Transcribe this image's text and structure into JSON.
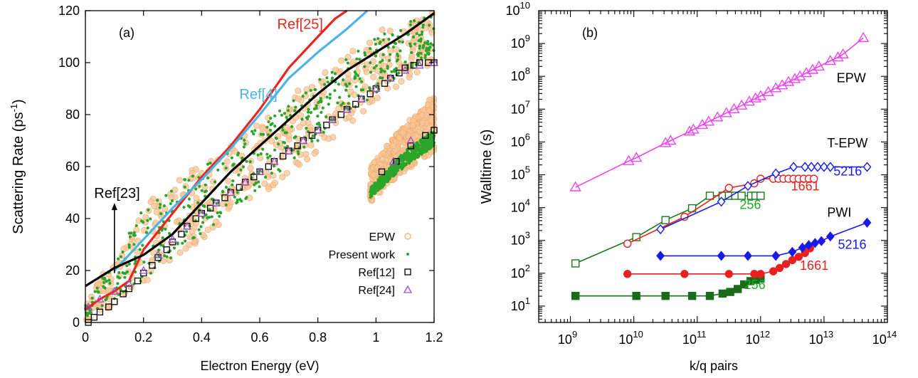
{
  "chart_data": [
    {
      "type": "scatter",
      "panel_label": "(a)",
      "xlabel": "Electron Energy (eV)",
      "ylabel": "Scattering Rate (ps",
      "ylabel_sup": "-1",
      "ylabel_close": ")",
      "xlim": [
        0,
        1.2
      ],
      "ylim": [
        0,
        120
      ],
      "xticks": [
        0,
        0.2,
        0.4,
        0.6,
        0.8,
        1,
        1.2
      ],
      "xtick_labels": [
        "0",
        "0.2",
        "0.4",
        "0.6",
        "0.8",
        "1",
        "1.2"
      ],
      "yticks": [
        0,
        20,
        40,
        60,
        80,
        100,
        120
      ],
      "ytick_labels": [
        "0",
        "20",
        "40",
        "60",
        "80",
        "100",
        "120"
      ],
      "legend": [
        {
          "label": "EPW",
          "marker": "circle",
          "color": "#f5b47a"
        },
        {
          "label": "Present work",
          "marker": "dot",
          "color": "#22a822"
        },
        {
          "label": "Ref[12]",
          "marker": "square",
          "color": "#000000"
        },
        {
          "label": "Ref[24]",
          "marker": "triangle",
          "color": "#9b4fc9"
        }
      ],
      "bands": [
        {
          "name": "EPW",
          "color": "#f5c59a",
          "x": [
            0,
            0.2,
            0.4,
            0.6,
            0.8,
            1.0,
            1.2
          ],
          "lower": [
            0,
            14,
            30,
            48,
            66,
            85,
            100
          ],
          "upper": [
            8,
            45,
            62,
            78,
            95,
            112,
            120
          ]
        },
        {
          "name": "Present work",
          "color": "#2aa52a",
          "x": [
            0,
            0.2,
            0.4,
            0.6,
            0.8,
            1.0,
            1.2
          ],
          "lower": [
            2,
            16,
            34,
            52,
            70,
            88,
            104
          ],
          "upper": [
            7,
            44,
            60,
            76,
            93,
            110,
            120
          ]
        },
        {
          "name": "EPW upper branch",
          "color": "#f5c59a",
          "x": [
            0.98,
            1.05,
            1.1,
            1.15,
            1.2
          ],
          "lower": [
            46,
            54,
            58,
            62,
            66
          ],
          "upper": [
            60,
            70,
            76,
            82,
            88
          ]
        },
        {
          "name": "Present work upper branch",
          "color": "#2aa52a",
          "x": [
            0.98,
            1.05,
            1.1,
            1.15,
            1.2
          ],
          "lower": [
            48,
            55,
            60,
            64,
            68
          ],
          "upper": [
            52,
            60,
            66,
            70,
            74
          ]
        }
      ],
      "series": [
        {
          "name": "Ref[12]",
          "marker": "square",
          "color": "#000000",
          "x": [
            0.01,
            0.03,
            0.05,
            0.08,
            0.1,
            0.13,
            0.15,
            0.18,
            0.2,
            0.23,
            0.25,
            0.28,
            0.3,
            0.33,
            0.35,
            0.38,
            0.4,
            0.43,
            0.45,
            0.48,
            0.5,
            0.53,
            0.55,
            0.58,
            0.6,
            0.63,
            0.65,
            0.68,
            0.7,
            0.73,
            0.75,
            0.78,
            0.8,
            0.83,
            0.85,
            0.88,
            0.9,
            0.93,
            0.95,
            0.98,
            1.0,
            1.03,
            1.05,
            1.08,
            1.1,
            1.13,
            1.15,
            1.18,
            1.2,
            1.02,
            1.07,
            1.12,
            1.17,
            1.2
          ],
          "y": [
            0,
            2,
            4,
            6,
            8,
            11,
            13,
            16,
            19,
            22,
            25,
            28,
            31,
            34,
            37,
            40,
            42,
            44,
            46,
            48,
            50,
            52,
            54,
            56,
            58,
            60,
            62,
            64,
            66,
            68,
            70,
            72,
            74,
            76,
            78,
            80,
            82,
            84,
            86,
            88,
            90,
            92,
            94,
            96,
            98,
            99,
            100,
            100,
            100,
            58,
            62,
            68,
            72,
            74
          ]
        },
        {
          "name": "Ref[24]",
          "marker": "triangle",
          "color": "#9b4fc9",
          "x": [
            0.01,
            0.05,
            0.1,
            0.15,
            0.2,
            0.25,
            0.3,
            0.35,
            0.4,
            0.45,
            0.5,
            0.55,
            0.6,
            0.65,
            0.7,
            0.75,
            0.8,
            0.85,
            0.9,
            0.95,
            1.0,
            1.05,
            1.1,
            1.15,
            1.2,
            1.06,
            1.12
          ],
          "y": [
            6,
            9,
            12,
            15,
            20,
            26,
            32,
            37,
            42,
            46,
            50,
            54,
            58,
            62,
            66,
            70,
            74,
            78,
            82,
            86,
            90,
            94,
            97,
            99,
            100,
            62,
            70
          ]
        }
      ],
      "lines": [
        {
          "name": "Ref[25]",
          "color": "#e8261f",
          "x": [
            0,
            0.05,
            0.1,
            0.15,
            0.2,
            0.3,
            0.4,
            0.5,
            0.6,
            0.7,
            0.8,
            0.86,
            0.9
          ],
          "y": [
            5,
            9,
            12,
            16,
            28,
            42,
            56,
            68,
            82,
            98,
            110,
            117,
            120
          ]
        },
        {
          "name": "Ref[4]",
          "color": "#4db3e6",
          "x": [
            0.1,
            0.2,
            0.3,
            0.4,
            0.5,
            0.6,
            0.7,
            0.8,
            0.9,
            0.97
          ],
          "y": [
            20,
            32,
            44,
            55,
            67,
            80,
            94,
            104,
            113,
            120
          ]
        },
        {
          "name": "black curve",
          "color": "#000000",
          "x": [
            0,
            0.1,
            0.2,
            0.3,
            0.4,
            0.5,
            0.6,
            0.7,
            0.8,
            0.9,
            1.0,
            1.1,
            1.2
          ],
          "y": [
            14,
            21,
            26,
            34,
            46,
            58,
            68,
            78,
            88,
            97,
            104,
            111,
            119
          ]
        }
      ],
      "annotations": [
        {
          "text": "Ref[25]",
          "x": 0.66,
          "y": 113,
          "color": "#e8261f"
        },
        {
          "text": "Ref[4]",
          "x": 0.53,
          "y": 86,
          "color": "#4db3e6"
        },
        {
          "text": "Ref[23]",
          "x": 0.03,
          "y": 48,
          "color": "#000000"
        }
      ],
      "arrow": {
        "x": 0.1,
        "y_from": 19,
        "y_to": 46
      }
    },
    {
      "type": "line",
      "panel_label": "(b)",
      "xlabel": "k/q pairs",
      "ylabel": "Walltime (s)",
      "xscale": "log",
      "yscale": "log",
      "xlim_exp": [
        8.5,
        14
      ],
      "ylim_exp": [
        0.5,
        10
      ],
      "xtick_exps": [
        9,
        10,
        11,
        12,
        13,
        14
      ],
      "ytick_exps": [
        1,
        2,
        3,
        4,
        5,
        6,
        7,
        8,
        9,
        10
      ],
      "tick_base": "10",
      "series": [
        {
          "name": "EPW",
          "color": "#ee44ee",
          "marker": "open-triangle",
          "log_x": [
            9.08,
            9.92,
            10.04,
            10.5,
            10.58,
            10.88,
            10.94,
            11.08,
            11.18,
            11.32,
            11.46,
            11.58,
            11.7,
            11.82,
            11.92,
            12.0,
            12.12,
            12.24,
            12.34,
            12.44,
            12.54,
            12.62,
            12.72,
            12.82,
            12.92,
            13.1,
            13.22,
            13.3,
            13.62
          ],
          "log_y": [
            4.62,
            5.42,
            5.52,
            5.97,
            6.04,
            6.32,
            6.38,
            6.52,
            6.62,
            6.75,
            6.88,
            7.0,
            7.11,
            7.23,
            7.33,
            7.4,
            7.52,
            7.64,
            7.73,
            7.83,
            7.92,
            8.0,
            8.1,
            8.2,
            8.3,
            8.47,
            8.58,
            8.67,
            9.17
          ]
        },
        {
          "name": "T-EPW 256",
          "color": "#1a7a1a",
          "marker": "open-square",
          "log_x": [
            9.08,
            10.04,
            10.5,
            10.92,
            11.2,
            11.4,
            11.5,
            11.6,
            11.7,
            11.85,
            11.92,
            12.0
          ],
          "log_y": [
            2.3,
            3.1,
            3.62,
            3.98,
            4.36,
            4.36,
            4.36,
            4.36,
            4.36,
            4.36,
            4.36,
            4.36
          ]
        },
        {
          "name": "T-EPW 1661",
          "color": "#e82020",
          "marker": "open-circle",
          "log_x": [
            9.9,
            10.8,
            11.5,
            11.9,
            12.0,
            12.2,
            12.28,
            12.36,
            12.44,
            12.52,
            12.6,
            12.68,
            12.76,
            12.84
          ],
          "log_y": [
            2.9,
            3.72,
            4.6,
            4.74,
            4.88,
            4.88,
            4.88,
            4.88,
            4.88,
            4.88,
            4.88,
            4.88,
            4.88,
            4.88
          ]
        },
        {
          "name": "T-EPW 5216",
          "color": "#1a1ae8",
          "marker": "open-diamond",
          "log_x": [
            10.42,
            11.38,
            11.8,
            12.24,
            12.52,
            12.7,
            12.8,
            12.9,
            13.0,
            13.1,
            13.68
          ],
          "log_y": [
            3.34,
            4.18,
            4.66,
            5.04,
            5.24,
            5.24,
            5.24,
            5.24,
            5.24,
            5.24,
            5.24
          ]
        },
        {
          "name": "PWI 256",
          "color": "#1a6b1a",
          "marker": "filled-square",
          "log_x": [
            9.08,
            10.04,
            10.5,
            10.92,
            11.2,
            11.4,
            11.52,
            11.64,
            11.74,
            11.84,
            11.92,
            12.0
          ],
          "log_y": [
            1.31,
            1.31,
            1.31,
            1.31,
            1.31,
            1.38,
            1.43,
            1.52,
            1.66,
            1.76,
            1.8,
            1.84
          ]
        },
        {
          "name": "PWI 1661",
          "color": "#e82020",
          "marker": "filled-circle",
          "log_x": [
            9.9,
            10.8,
            11.5,
            11.9,
            12.0,
            12.2,
            12.3,
            12.4,
            12.5,
            12.6,
            12.7,
            12.78
          ],
          "log_y": [
            1.98,
            1.98,
            1.98,
            1.98,
            1.98,
            2.06,
            2.16,
            2.28,
            2.4,
            2.5,
            2.62,
            2.76
          ]
        },
        {
          "name": "PWI 5216",
          "color": "#1a1ae8",
          "marker": "filled-diamond",
          "log_x": [
            10.42,
            11.38,
            11.8,
            12.24,
            12.5,
            12.66,
            12.76,
            12.86,
            12.96,
            13.1,
            13.68
          ],
          "log_y": [
            2.53,
            2.53,
            2.53,
            2.53,
            2.65,
            2.78,
            2.86,
            2.92,
            2.98,
            3.12,
            3.54
          ]
        }
      ],
      "text_labels": [
        {
          "text": "EPW",
          "log_x": 13.2,
          "log_y": 7.82,
          "color": "#000000"
        },
        {
          "text": "T-EPW",
          "log_x": 13.05,
          "log_y": 5.84,
          "color": "#000000"
        },
        {
          "text": "5216",
          "log_x": 13.15,
          "log_y": 4.98,
          "color": "#1a1ae8"
        },
        {
          "text": "1661",
          "log_x": 12.48,
          "log_y": 4.52,
          "color": "#e82020"
        },
        {
          "text": "256",
          "log_x": 11.67,
          "log_y": 3.96,
          "color": "#22aa22"
        },
        {
          "text": "PWI",
          "log_x": 13.05,
          "log_y": 3.72,
          "color": "#000000"
        },
        {
          "text": "5216",
          "log_x": 13.22,
          "log_y": 2.74,
          "color": "#1a1ae8"
        },
        {
          "text": "1661",
          "log_x": 12.62,
          "log_y": 2.1,
          "color": "#e82020"
        },
        {
          "text": "256",
          "log_x": 11.74,
          "log_y": 1.52,
          "color": "#22aa22"
        }
      ]
    }
  ]
}
